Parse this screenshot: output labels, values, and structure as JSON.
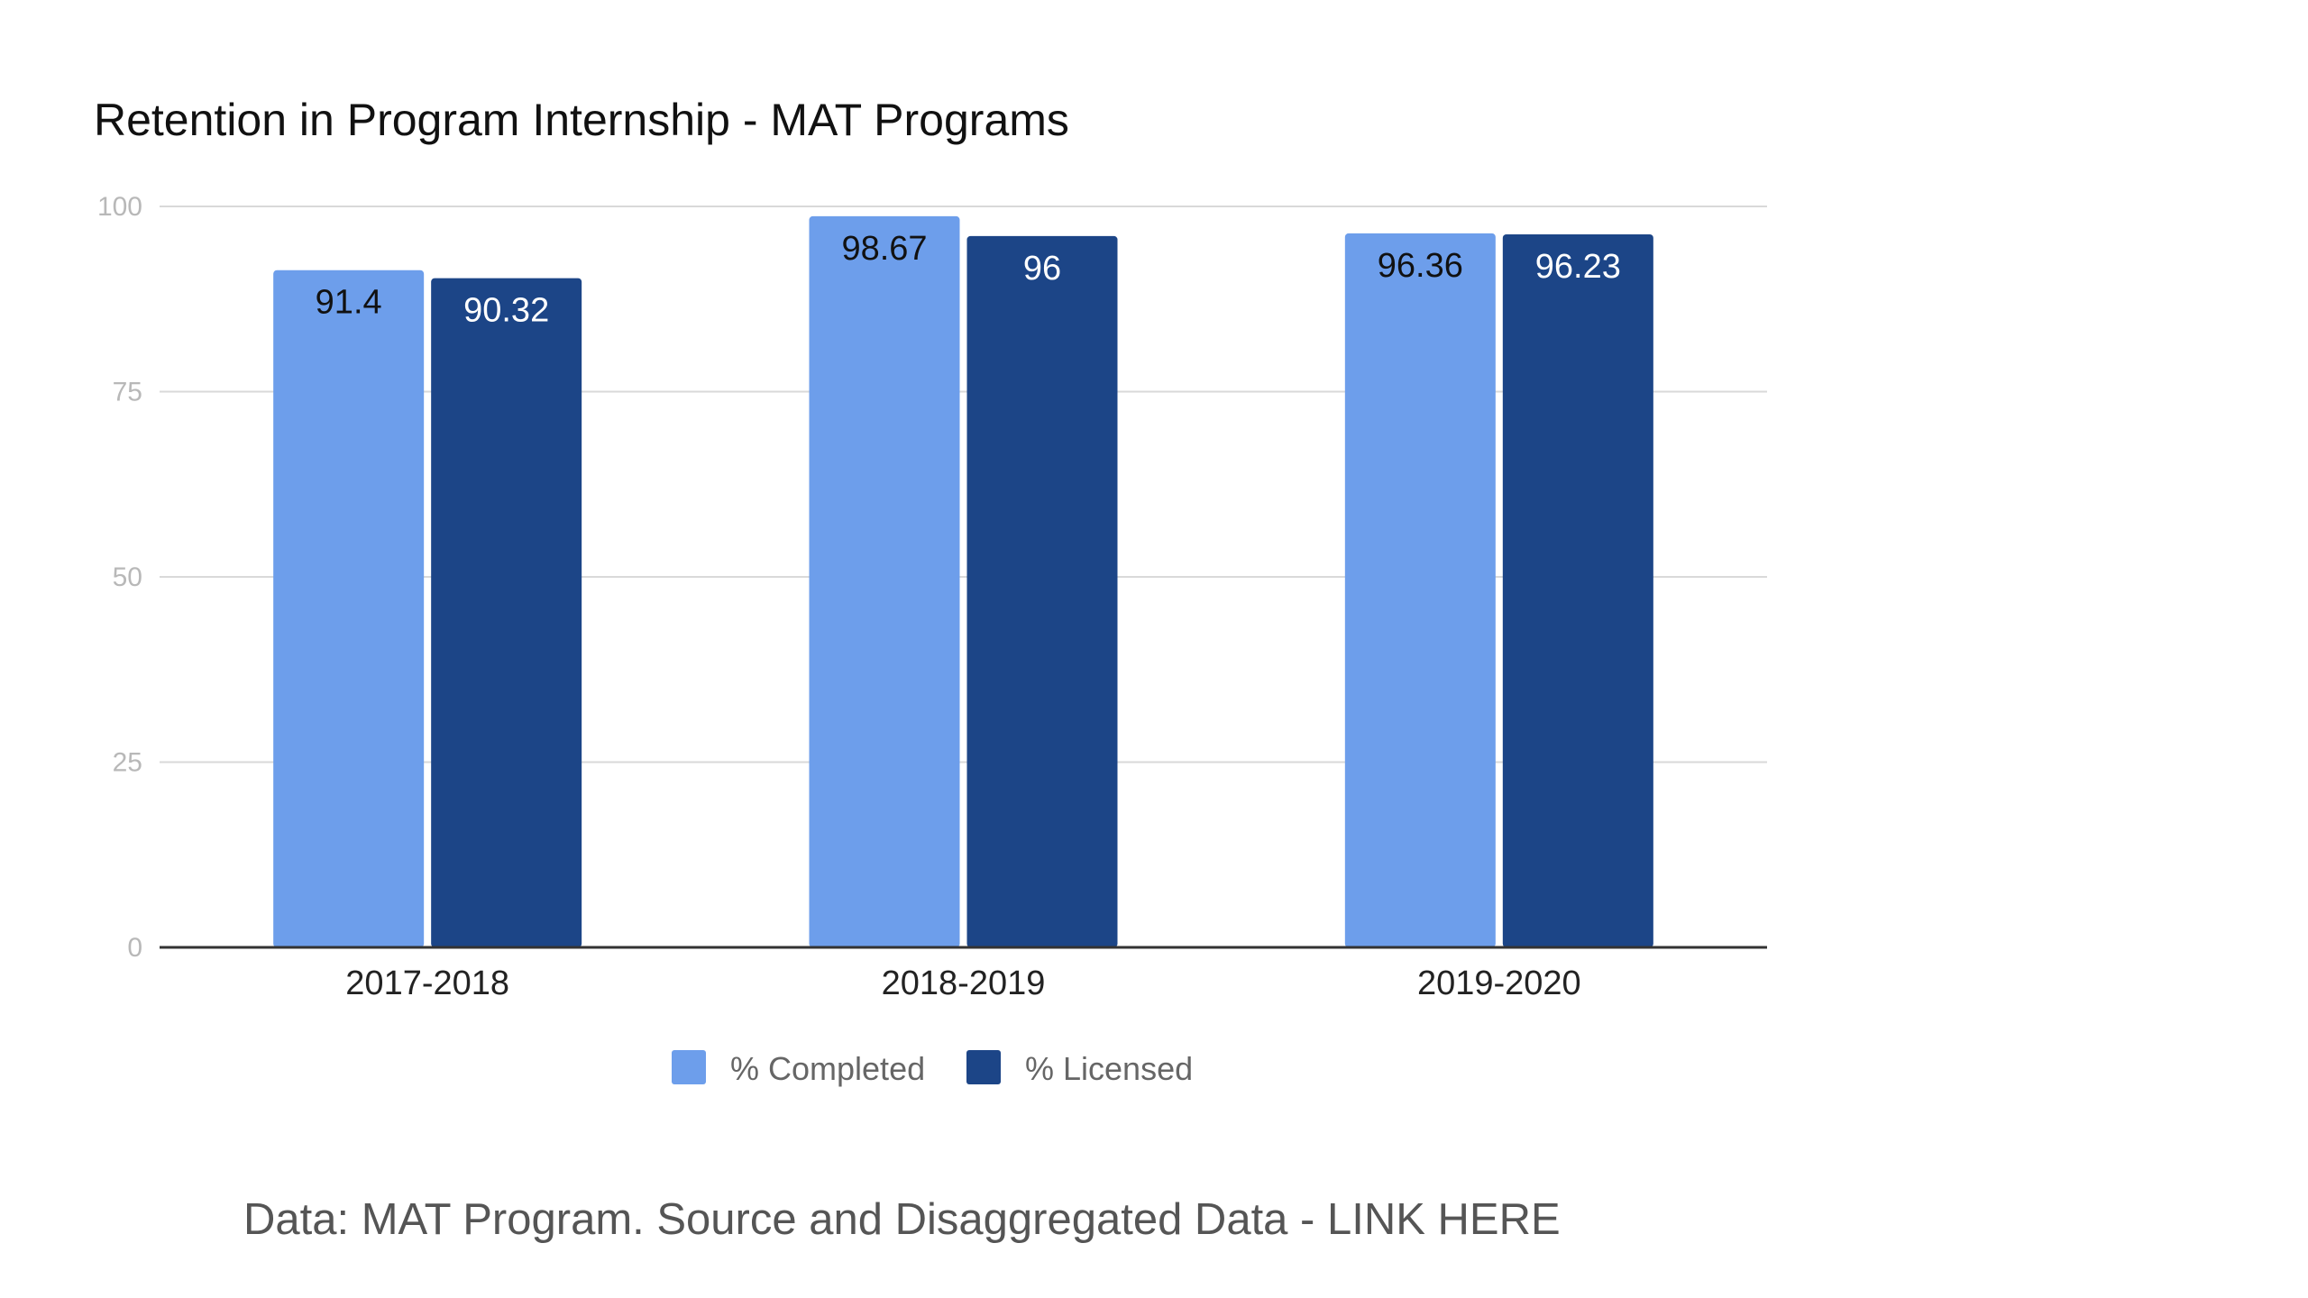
{
  "chart_data": {
    "type": "bar",
    "title": "Retention in Program Internship - MAT Programs",
    "xlabel": "",
    "ylabel": "",
    "ylim": [
      0,
      100
    ],
    "yticks": [
      0,
      25,
      50,
      75,
      100
    ],
    "grid": true,
    "legend_position": "bottom",
    "categories": [
      "2017-2018",
      "2018-2019",
      "2019-2020"
    ],
    "series": [
      {
        "name": "% Completed",
        "values": [
          91.4,
          98.67,
          96.36
        ],
        "labels": [
          "91.4",
          "98.67",
          "96.36"
        ],
        "color": "#6d9eeb",
        "label_color": "#111111"
      },
      {
        "name": "% Licensed",
        "values": [
          90.32,
          96,
          96.23
        ],
        "labels": [
          "90.32",
          "96",
          "96.23"
        ],
        "color": "#1c4587",
        "label_color": "#ffffff"
      }
    ]
  },
  "footer": {
    "prefix": "Data: MAT Program. Source and Disaggregated Data - ",
    "link_text": "LINK HERE"
  }
}
